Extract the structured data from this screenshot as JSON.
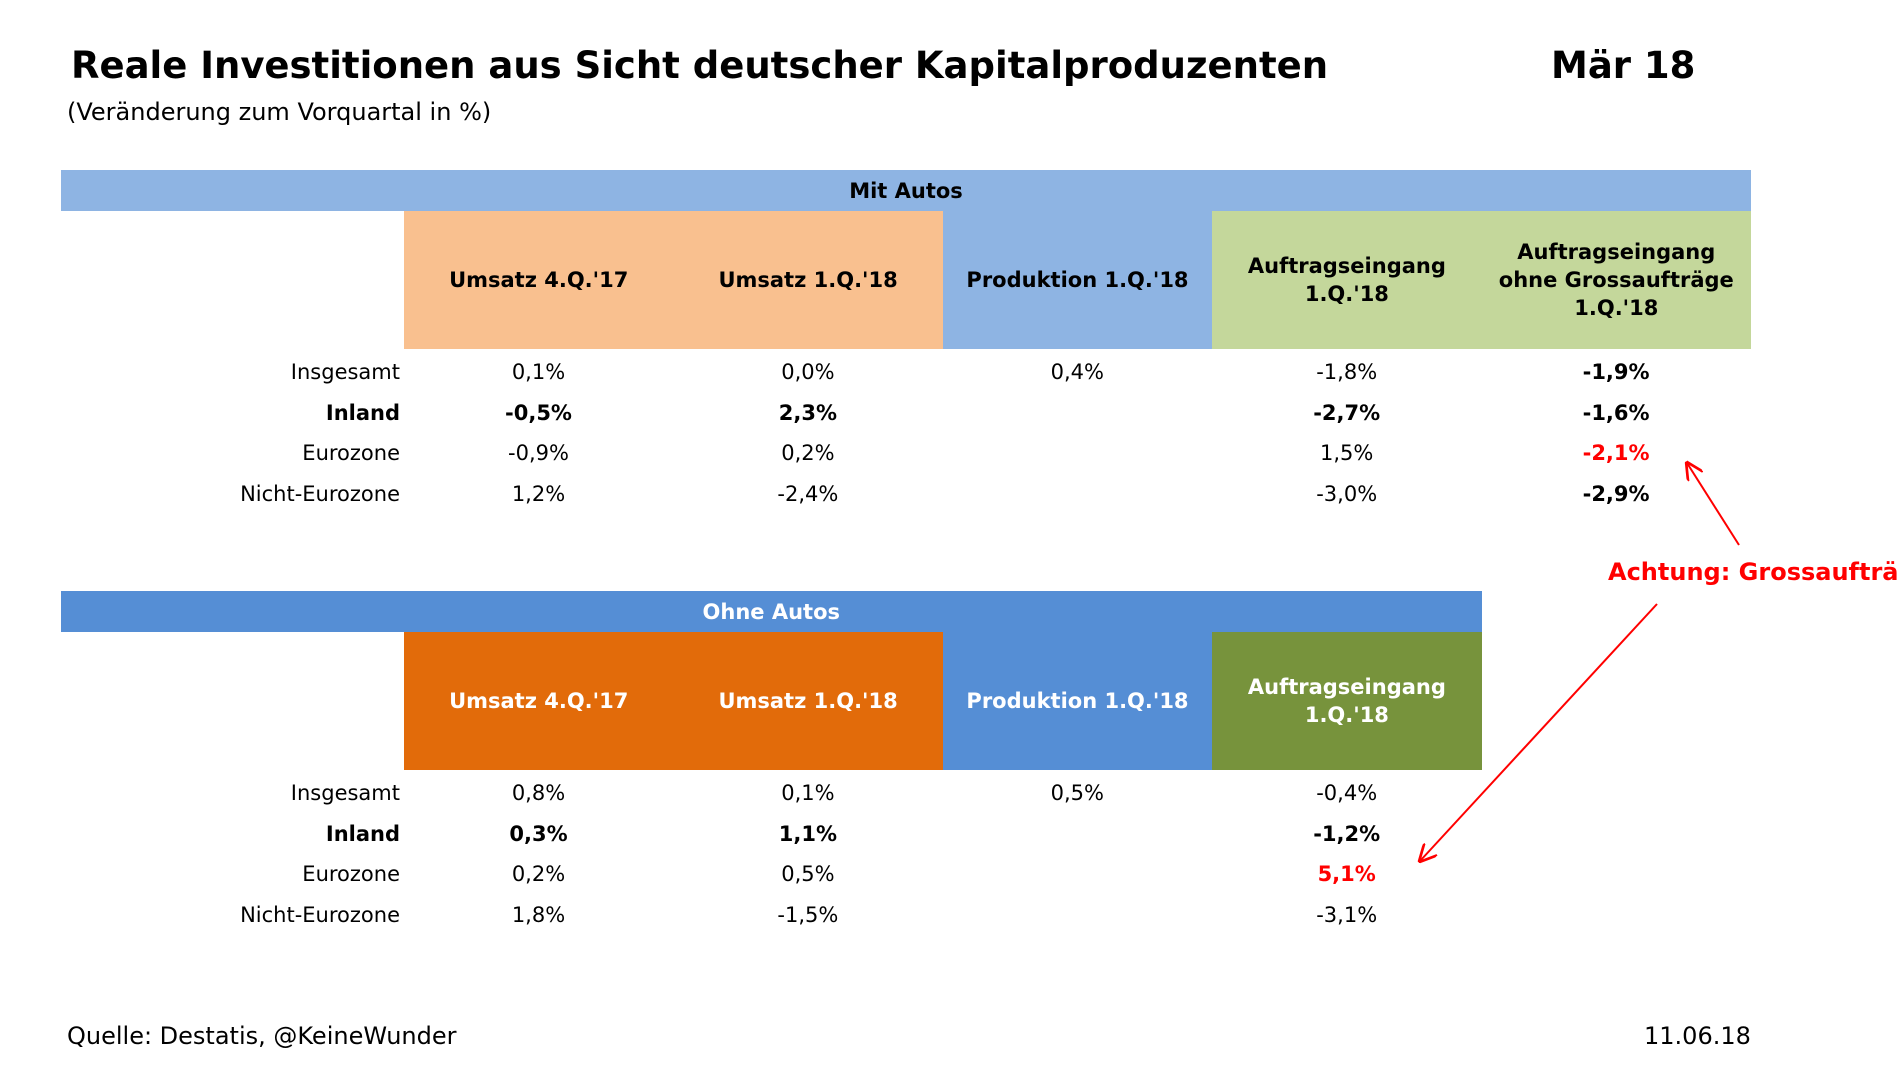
{
  "header": {
    "title": "Reale Investitionen aus Sicht deutscher Kapitalproduzenten",
    "date": "Mär 18",
    "subtitle": "(Veränderung zum Vorquartal in %)"
  },
  "tables": [
    {
      "title": "Mit Autos",
      "columns": [
        "Umsatz 4.Q.'17",
        "Umsatz 1.Q.'18",
        "Produktion 1.Q.'18",
        "Auftragseingang 1.Q.'18",
        "Auftragseingang ohne Grossaufträge 1.Q.'18"
      ],
      "rows": [
        {
          "label": "Insgesamt",
          "cells": [
            "0,1%",
            "0,0%",
            "0,4%",
            "-1,8%",
            "-1,9%"
          ]
        },
        {
          "label": "Inland",
          "cells": [
            "-0,5%",
            "2,3%",
            null,
            "-2,7%",
            "-1,6%"
          ]
        },
        {
          "label": "Eurozone",
          "cells": [
            "-0,9%",
            "0,2%",
            null,
            "1,5%",
            "-2,1%"
          ]
        },
        {
          "label": "Nicht-Eurozone",
          "cells": [
            "1,2%",
            "-2,4%",
            null,
            "-3,0%",
            "-2,9%"
          ]
        }
      ]
    },
    {
      "title": "Ohne Autos",
      "columns": [
        "Umsatz 4.Q.'17",
        "Umsatz 1.Q.'18",
        "Produktion 1.Q.'18",
        "Auftragseingang 1.Q.'18"
      ],
      "rows": [
        {
          "label": "Insgesamt",
          "cells": [
            "0,8%",
            "0,1%",
            "0,5%",
            "-0,4%"
          ]
        },
        {
          "label": "Inland",
          "cells": [
            "0,3%",
            "1,1%",
            null,
            "-1,2%"
          ]
        },
        {
          "label": "Eurozone",
          "cells": [
            "0,2%",
            "0,5%",
            null,
            "5,1%"
          ]
        },
        {
          "label": "Nicht-Eurozone",
          "cells": [
            "1,8%",
            "-1,5%",
            null,
            "-3,1%"
          ]
        }
      ]
    }
  ],
  "annotation": "Achtung: Grossaufträge!",
  "footer": {
    "source": "Quelle: Destatis, @KeineWunder",
    "date": "11.06.18"
  }
}
